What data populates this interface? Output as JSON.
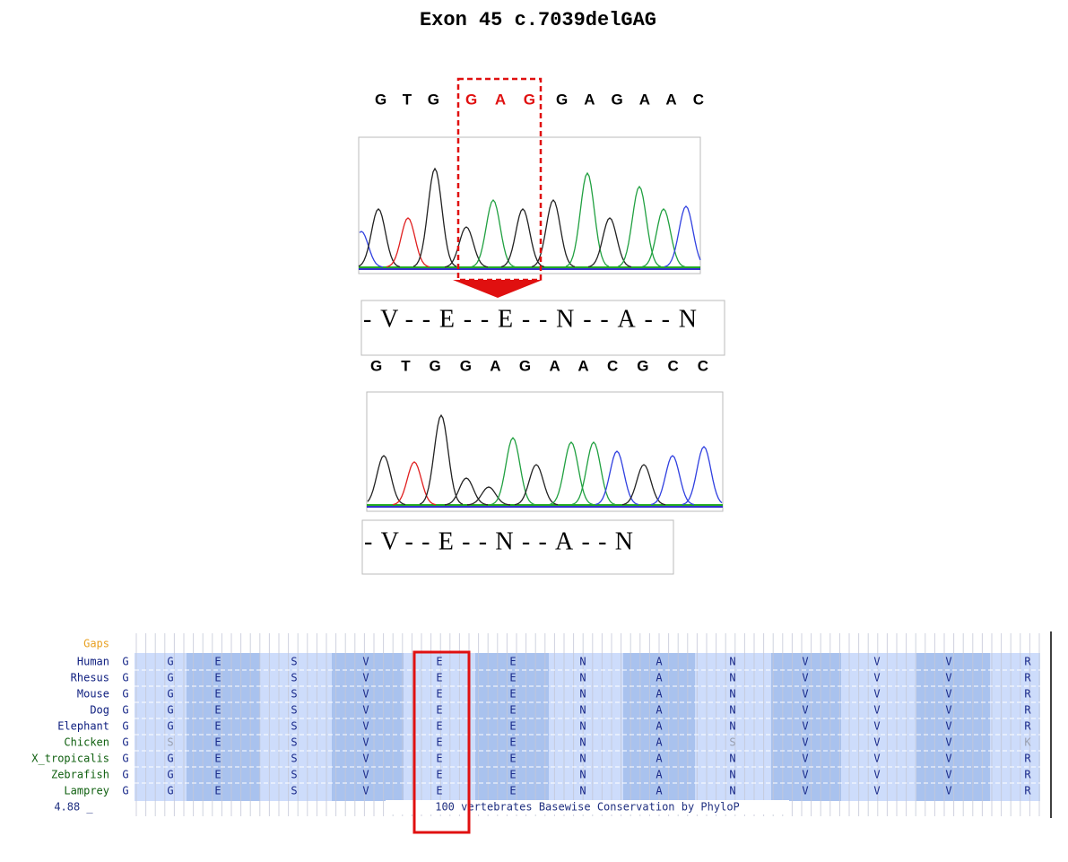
{
  "title": "Exon 45 c.7039delGAG",
  "wild_type": {
    "seq_before": "G T G",
    "deleted": "G A G",
    "seq_after": "G A G A A C",
    "protein": "-V--E--E--N--A--N"
  },
  "mutant": {
    "sequence": "G T G G A G A A C G C C",
    "protein": "-V--E--N--A--N"
  },
  "alignment": {
    "track_label": "Gaps",
    "rows": [
      {
        "species": "Human",
        "residues": [
          "G",
          "G",
          "E",
          "S",
          "V",
          "E",
          "E",
          "N",
          "A",
          "N",
          "V",
          "V",
          "V",
          "R"
        ]
      },
      {
        "species": "Rhesus",
        "residues": [
          "G",
          "G",
          "E",
          "S",
          "V",
          "E",
          "E",
          "N",
          "A",
          "N",
          "V",
          "V",
          "V",
          "R"
        ]
      },
      {
        "species": "Mouse",
        "residues": [
          "G",
          "G",
          "E",
          "S",
          "V",
          "E",
          "E",
          "N",
          "A",
          "N",
          "V",
          "V",
          "V",
          "R"
        ]
      },
      {
        "species": "Dog",
        "residues": [
          "G",
          "G",
          "E",
          "S",
          "V",
          "E",
          "E",
          "N",
          "A",
          "N",
          "V",
          "V",
          "V",
          "R"
        ]
      },
      {
        "species": "Elephant",
        "residues": [
          "G",
          "G",
          "E",
          "S",
          "V",
          "E",
          "E",
          "N",
          "A",
          "N",
          "V",
          "V",
          "V",
          "R"
        ]
      },
      {
        "species": "Chicken",
        "residues": [
          "G",
          "S",
          "E",
          "S",
          "V",
          "E",
          "E",
          "N",
          "A",
          "S",
          "V",
          "V",
          "V",
          "K"
        ]
      },
      {
        "species": "X_tropicalis",
        "residues": [
          "G",
          "G",
          "E",
          "S",
          "V",
          "E",
          "E",
          "N",
          "A",
          "N",
          "V",
          "V",
          "V",
          "R"
        ]
      },
      {
        "species": "Zebrafish",
        "residues": [
          "G",
          "G",
          "E",
          "S",
          "V",
          "E",
          "E",
          "N",
          "A",
          "N",
          "V",
          "V",
          "V",
          "R"
        ]
      },
      {
        "species": "Lamprey",
        "residues": [
          "G",
          "G",
          "E",
          "S",
          "V",
          "E",
          "E",
          "N",
          "A",
          "N",
          "V",
          "V",
          "V",
          "R"
        ]
      }
    ],
    "scale_label": "4.88 _",
    "caption": "100 vertebrates Basewise Conservation by PhyloP"
  }
}
